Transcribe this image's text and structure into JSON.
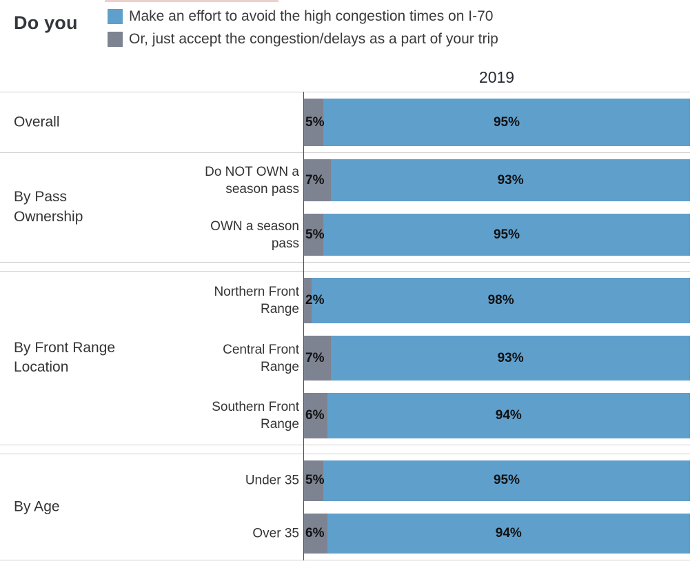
{
  "title": "Do you",
  "legend": {
    "items": [
      {
        "label": "Make an effort to avoid the high congestion times on I-70",
        "color": "#5f9fcc"
      },
      {
        "label": "Or, just accept the congestion/delays as a part of your trip",
        "color": "#7d8391"
      }
    ]
  },
  "column_header": "2019",
  "chart_data": {
    "type": "bar",
    "orientation": "horizontal",
    "stacked": true,
    "unit": "percent",
    "title": "Do you",
    "column_header": "2019",
    "xlim": [
      0,
      100
    ],
    "legend_position": "top",
    "series_names": [
      "Or, just accept the congestion/delays as a part of your trip",
      "Make an effort to avoid the high congestion times on I-70"
    ],
    "colors": {
      "accept": "#7d8391",
      "avoid": "#5f9fcc"
    },
    "groups": [
      {
        "label": "Overall",
        "rows": [
          {
            "label": "",
            "accept_pct": 5,
            "avoid_pct": 95
          }
        ]
      },
      {
        "label": "By Pass Ownership",
        "rows": [
          {
            "label": "Do NOT OWN a season pass",
            "accept_pct": 7,
            "avoid_pct": 93
          },
          {
            "label": "OWN a season pass",
            "accept_pct": 5,
            "avoid_pct": 95
          }
        ]
      },
      {
        "label": "By Front Range Location",
        "rows": [
          {
            "label": "Northern Front Range",
            "accept_pct": 2,
            "avoid_pct": 98
          },
          {
            "label": "Central Front Range",
            "accept_pct": 7,
            "avoid_pct": 93
          },
          {
            "label": "Southern Front Range",
            "accept_pct": 6,
            "avoid_pct": 94
          }
        ]
      },
      {
        "label": "By Age",
        "rows": [
          {
            "label": "Under 35",
            "accept_pct": 5,
            "avoid_pct": 95
          },
          {
            "label": "Over 35",
            "accept_pct": 6,
            "avoid_pct": 94
          }
        ]
      }
    ]
  }
}
